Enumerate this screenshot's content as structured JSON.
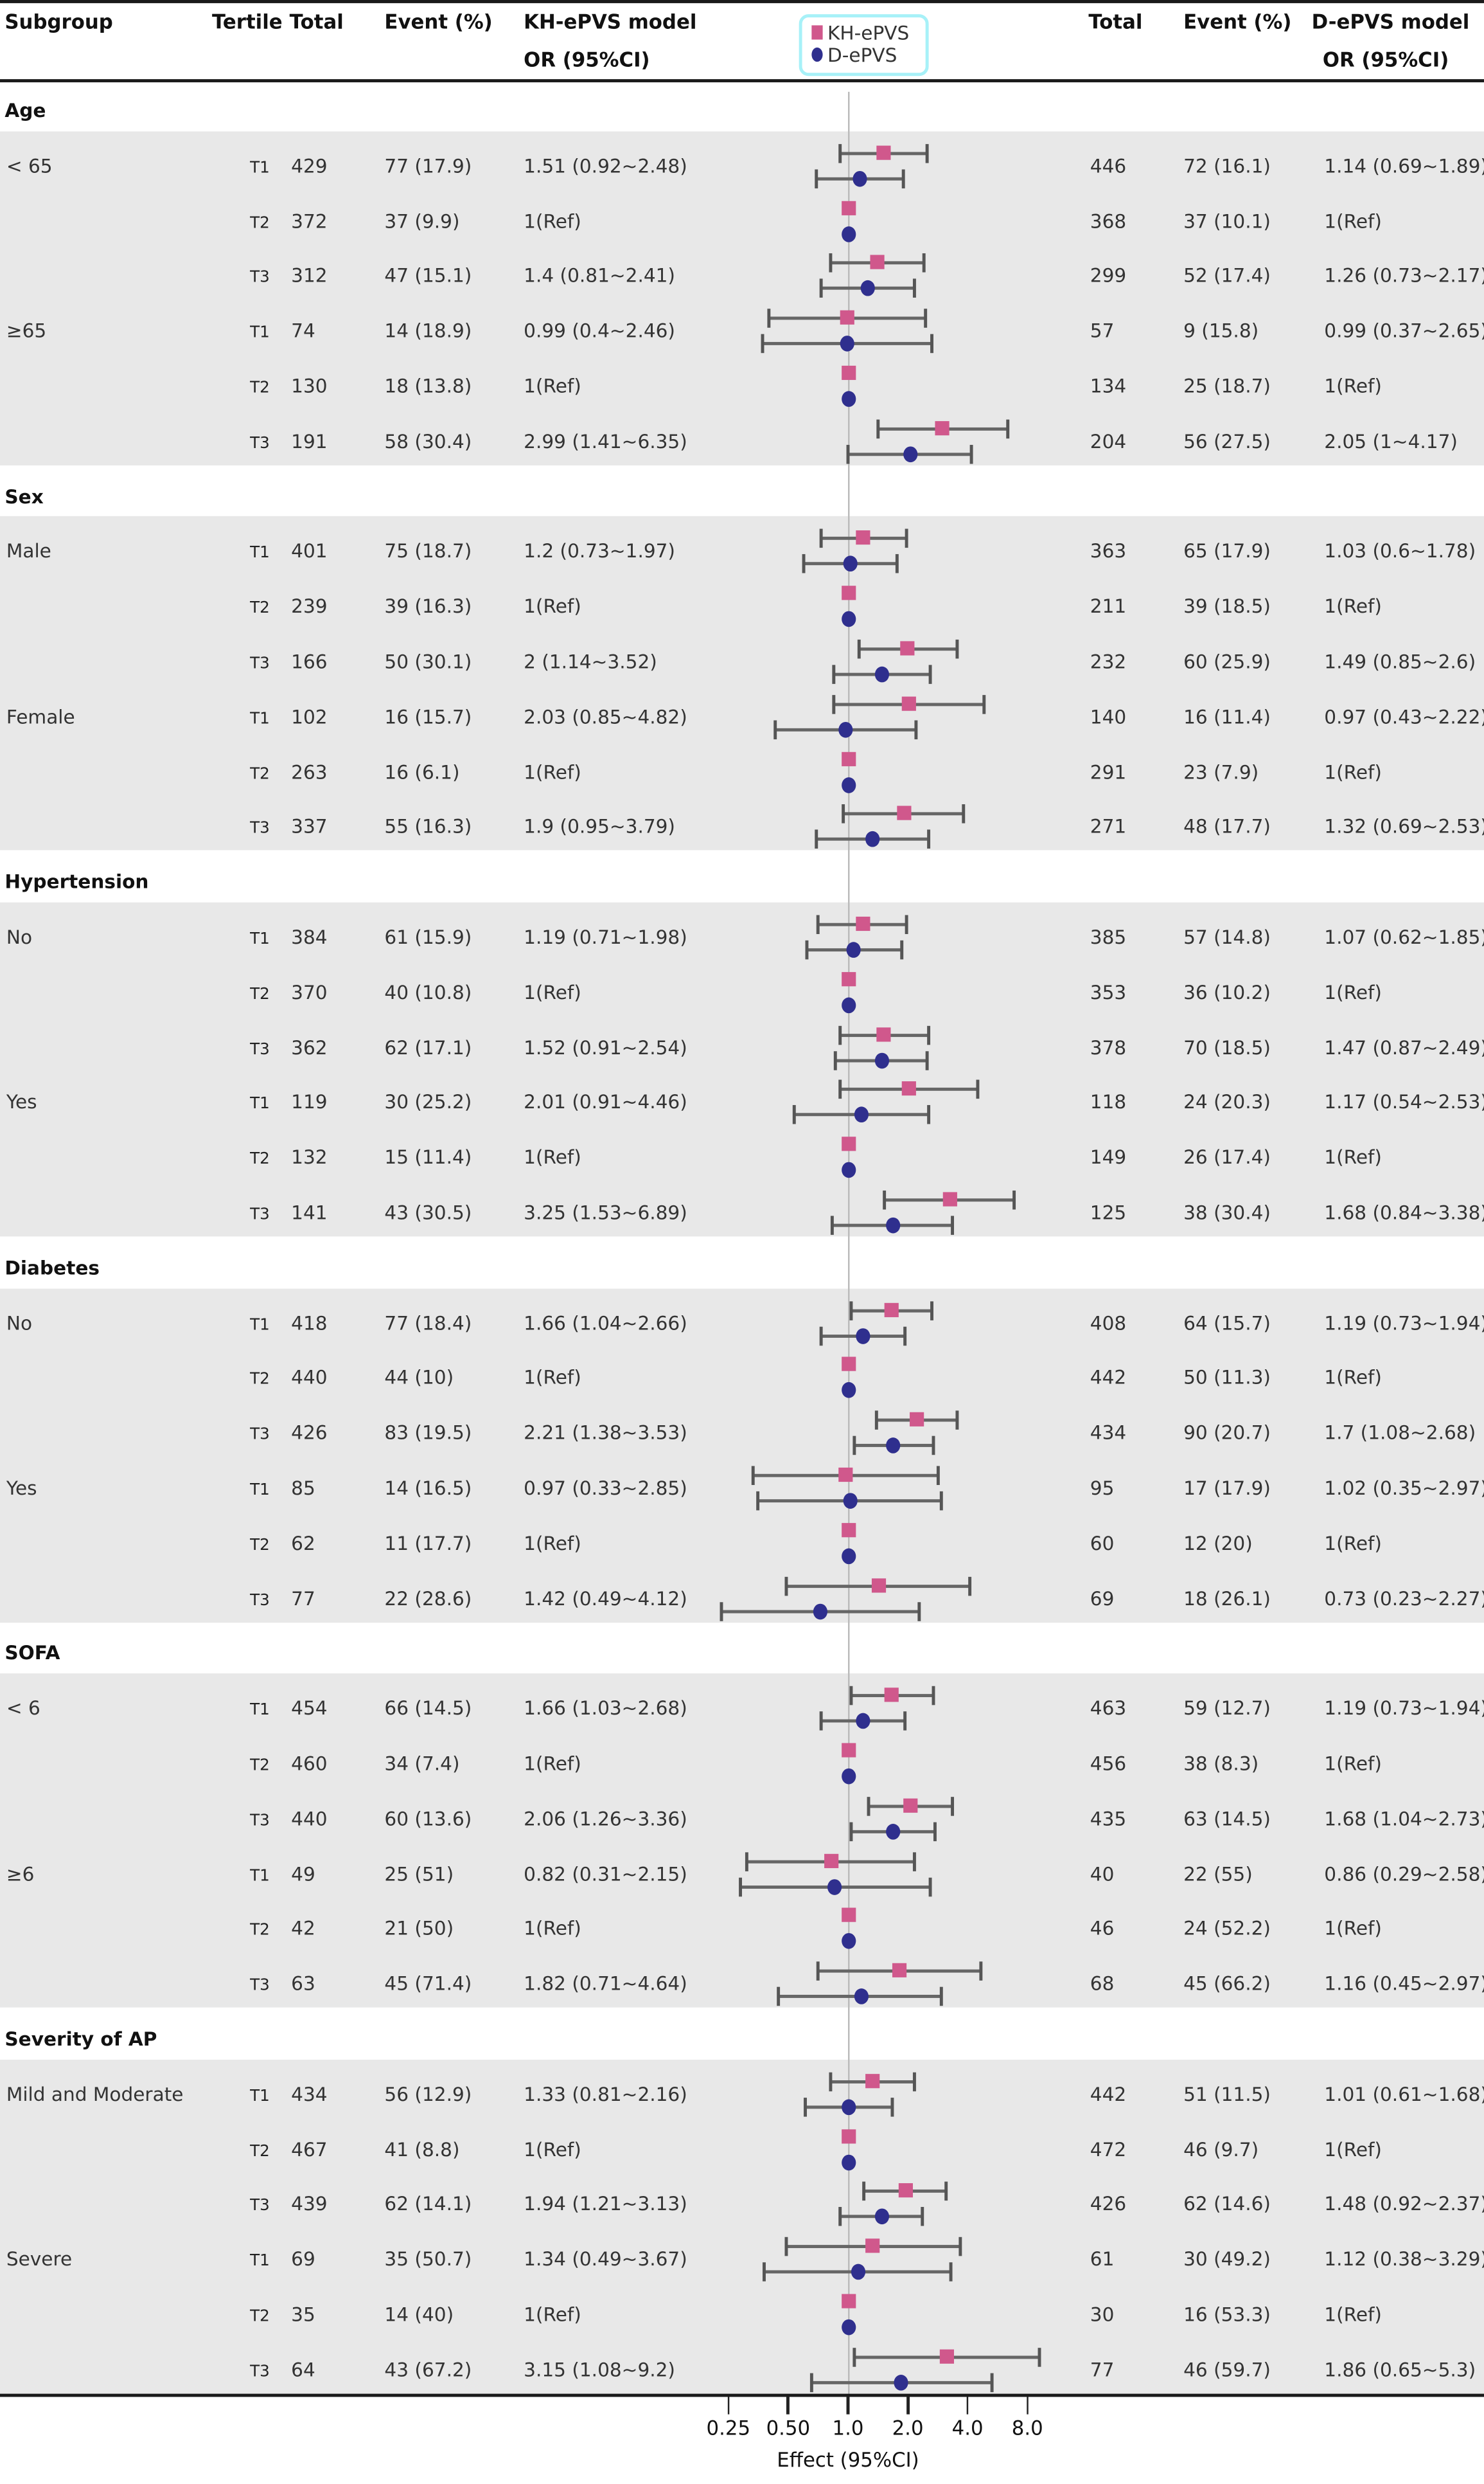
{
  "header": {
    "subgroup": "Subgroup",
    "tertile": "Tertile",
    "total": "Total",
    "event": "Event (%)",
    "kh_model": "KH-ePVS model",
    "or": "OR (95%CI)",
    "total_r": "Total",
    "event_r": "Event (%)",
    "d_model": "D-ePVS model",
    "or_r": "OR (95%CI)"
  },
  "colors": {
    "kh": "#d0588c",
    "d": "#2f2f8e",
    "band": "#e8e8e8",
    "legend_border": "#a7f1f8"
  },
  "chart_data": {
    "type": "forest",
    "xlabel": "Effect (95%CI)",
    "x_scale": "log2",
    "x_ticks": [
      0.25,
      0.5,
      1,
      2,
      4,
      8
    ],
    "x_tick_labels": [
      "0.25",
      "0.50",
      "1.0",
      "2.0",
      "4.0",
      "8.0"
    ],
    "reference_line": 1,
    "legend": {
      "position": "top-center",
      "kh": "KH-ePVS",
      "d": "D-ePVS"
    },
    "sections": [
      {
        "name": "Age",
        "groups": [
          {
            "name": "< 65",
            "rows": [
              {
                "t": "T1",
                "kh": [
                  "429",
                  "77 (17.9)",
                  "1.51 (0.92~2.48)"
                ],
                "d": [
                  "446",
                  "72 (16.1)",
                  "1.14 (0.69~1.89)"
                ]
              },
              {
                "t": "T2",
                "kh": [
                  "372",
                  "37 (9.9)",
                  "1(Ref)"
                ],
                "d": [
                  "368",
                  "37 (10.1)",
                  "1(Ref)"
                ]
              },
              {
                "t": "T3",
                "kh": [
                  "312",
                  "47 (15.1)",
                  "1.4 (0.81~2.41)"
                ],
                "d": [
                  "299",
                  "52 (17.4)",
                  "1.26 (0.73~2.17)"
                ]
              }
            ]
          },
          {
            "name": "≥65",
            "rows": [
              {
                "t": "T1",
                "kh": [
                  "74",
                  "14 (18.9)",
                  "0.99 (0.4~2.46)"
                ],
                "d": [
                  "57",
                  "9 (15.8)",
                  "0.99 (0.37~2.65)"
                ]
              },
              {
                "t": "T2",
                "kh": [
                  "130",
                  "18 (13.8)",
                  "1(Ref)"
                ],
                "d": [
                  "134",
                  "25 (18.7)",
                  "1(Ref)"
                ]
              },
              {
                "t": "T3",
                "kh": [
                  "191",
                  "58 (30.4)",
                  "2.99 (1.41~6.35)"
                ],
                "d": [
                  "204",
                  "56 (27.5)",
                  "2.05 (1~4.17)"
                ]
              }
            ]
          }
        ]
      },
      {
        "name": "Sex",
        "groups": [
          {
            "name": "Male",
            "rows": [
              {
                "t": "T1",
                "kh": [
                  "401",
                  "75 (18.7)",
                  "1.2 (0.73~1.97)"
                ],
                "d": [
                  "363",
                  "65 (17.9)",
                  "1.03 (0.6~1.78)"
                ]
              },
              {
                "t": "T2",
                "kh": [
                  "239",
                  "39 (16.3)",
                  "1(Ref)"
                ],
                "d": [
                  "211",
                  "39 (18.5)",
                  "1(Ref)"
                ]
              },
              {
                "t": "T3",
                "kh": [
                  "166",
                  "50 (30.1)",
                  "2 (1.14~3.52)"
                ],
                "d": [
                  "232",
                  "60 (25.9)",
                  "1.49 (0.85~2.6)"
                ]
              }
            ]
          },
          {
            "name": "Female",
            "rows": [
              {
                "t": "T1",
                "kh": [
                  "102",
                  "16 (15.7)",
                  "2.03 (0.85~4.82)"
                ],
                "d": [
                  "140",
                  "16 (11.4)",
                  "0.97 (0.43~2.22)"
                ]
              },
              {
                "t": "T2",
                "kh": [
                  "263",
                  "16 (6.1)",
                  "1(Ref)"
                ],
                "d": [
                  "291",
                  "23 (7.9)",
                  "1(Ref)"
                ]
              },
              {
                "t": "T3",
                "kh": [
                  "337",
                  "55 (16.3)",
                  "1.9 (0.95~3.79)"
                ],
                "d": [
                  "271",
                  "48 (17.7)",
                  "1.32 (0.69~2.53)"
                ]
              }
            ]
          }
        ]
      },
      {
        "name": "Hypertension",
        "groups": [
          {
            "name": "No",
            "rows": [
              {
                "t": "T1",
                "kh": [
                  "384",
                  "61 (15.9)",
                  "1.19 (0.71~1.98)"
                ],
                "d": [
                  "385",
                  "57 (14.8)",
                  "1.07 (0.62~1.85)"
                ]
              },
              {
                "t": "T2",
                "kh": [
                  "370",
                  "40 (10.8)",
                  "1(Ref)"
                ],
                "d": [
                  "353",
                  "36 (10.2)",
                  "1(Ref)"
                ]
              },
              {
                "t": "T3",
                "kh": [
                  "362",
                  "62 (17.1)",
                  "1.52 (0.91~2.54)"
                ],
                "d": [
                  "378",
                  "70 (18.5)",
                  "1.47 (0.87~2.49)"
                ]
              }
            ]
          },
          {
            "name": "Yes",
            "rows": [
              {
                "t": "T1",
                "kh": [
                  "119",
                  "30 (25.2)",
                  "2.01 (0.91~4.46)"
                ],
                "d": [
                  "118",
                  "24 (20.3)",
                  "1.17 (0.54~2.53)"
                ]
              },
              {
                "t": "T2",
                "kh": [
                  "132",
                  "15 (11.4)",
                  "1(Ref)"
                ],
                "d": [
                  "149",
                  "26 (17.4)",
                  "1(Ref)"
                ]
              },
              {
                "t": "T3",
                "kh": [
                  "141",
                  "43 (30.5)",
                  "3.25 (1.53~6.89)"
                ],
                "d": [
                  "125",
                  "38 (30.4)",
                  "1.68 (0.84~3.38)"
                ]
              }
            ]
          }
        ]
      },
      {
        "name": "Diabetes",
        "groups": [
          {
            "name": "No",
            "rows": [
              {
                "t": "T1",
                "kh": [
                  "418",
                  "77 (18.4)",
                  "1.66 (1.04~2.66)"
                ],
                "d": [
                  "408",
                  "64 (15.7)",
                  "1.19 (0.73~1.94)"
                ]
              },
              {
                "t": "T2",
                "kh": [
                  "440",
                  "44 (10)",
                  "1(Ref)"
                ],
                "d": [
                  "442",
                  "50 (11.3)",
                  "1(Ref)"
                ]
              },
              {
                "t": "T3",
                "kh": [
                  "426",
                  "83 (19.5)",
                  "2.21 (1.38~3.53)"
                ],
                "d": [
                  "434",
                  "90 (20.7)",
                  "1.7 (1.08~2.68)"
                ]
              }
            ]
          },
          {
            "name": "Yes",
            "rows": [
              {
                "t": "T1",
                "kh": [
                  "85",
                  "14 (16.5)",
                  "0.97 (0.33~2.85)"
                ],
                "d": [
                  "95",
                  "17 (17.9)",
                  "1.02 (0.35~2.97)"
                ]
              },
              {
                "t": "T2",
                "kh": [
                  "62",
                  "11 (17.7)",
                  "1(Ref)"
                ],
                "d": [
                  "60",
                  "12 (20)",
                  "1(Ref)"
                ]
              },
              {
                "t": "T3",
                "kh": [
                  "77",
                  "22 (28.6)",
                  "1.42 (0.49~4.12)"
                ],
                "d": [
                  "69",
                  "18 (26.1)",
                  "0.73 (0.23~2.27)"
                ]
              }
            ]
          }
        ]
      },
      {
        "name": "SOFA",
        "groups": [
          {
            "name": "< 6",
            "rows": [
              {
                "t": "T1",
                "kh": [
                  "454",
                  "66 (14.5)",
                  "1.66 (1.03~2.68)"
                ],
                "d": [
                  "463",
                  "59 (12.7)",
                  "1.19 (0.73~1.94)"
                ]
              },
              {
                "t": "T2",
                "kh": [
                  "460",
                  "34 (7.4)",
                  "1(Ref)"
                ],
                "d": [
                  "456",
                  "38 (8.3)",
                  "1(Ref)"
                ]
              },
              {
                "t": "T3",
                "kh": [
                  "440",
                  "60 (13.6)",
                  "2.06 (1.26~3.36)"
                ],
                "d": [
                  "435",
                  "63 (14.5)",
                  "1.68 (1.04~2.73)"
                ]
              }
            ]
          },
          {
            "name": "≥6",
            "rows": [
              {
                "t": "T1",
                "kh": [
                  "49",
                  "25 (51)",
                  "0.82 (0.31~2.15)"
                ],
                "d": [
                  "40",
                  "22 (55)",
                  "0.86 (0.29~2.58)"
                ]
              },
              {
                "t": "T2",
                "kh": [
                  "42",
                  "21 (50)",
                  "1(Ref)"
                ],
                "d": [
                  "46",
                  "24 (52.2)",
                  "1(Ref)"
                ]
              },
              {
                "t": "T3",
                "kh": [
                  "63",
                  "45 (71.4)",
                  "1.82 (0.71~4.64)"
                ],
                "d": [
                  "68",
                  "45 (66.2)",
                  "1.16 (0.45~2.97)"
                ]
              }
            ]
          }
        ]
      },
      {
        "name": "Severity of AP",
        "groups": [
          {
            "name": "Mild and Moderate",
            "rows": [
              {
                "t": "T1",
                "kh": [
                  "434",
                  "56 (12.9)",
                  "1.33 (0.81~2.16)"
                ],
                "d": [
                  "442",
                  "51 (11.5)",
                  "1.01 (0.61~1.68)"
                ]
              },
              {
                "t": "T2",
                "kh": [
                  "467",
                  "41 (8.8)",
                  "1(Ref)"
                ],
                "d": [
                  "472",
                  "46 (9.7)",
                  "1(Ref)"
                ]
              },
              {
                "t": "T3",
                "kh": [
                  "439",
                  "62 (14.1)",
                  "1.94 (1.21~3.13)"
                ],
                "d": [
                  "426",
                  "62 (14.6)",
                  "1.48 (0.92~2.37)"
                ]
              }
            ]
          },
          {
            "name": "Severe",
            "rows": [
              {
                "t": "T1",
                "kh": [
                  "69",
                  "35 (50.7)",
                  "1.34 (0.49~3.67)"
                ],
                "d": [
                  "61",
                  "30 (49.2)",
                  "1.12 (0.38~3.29)"
                ]
              },
              {
                "t": "T2",
                "kh": [
                  "35",
                  "14 (40)",
                  "1(Ref)"
                ],
                "d": [
                  "30",
                  "16 (53.3)",
                  "1(Ref)"
                ]
              },
              {
                "t": "T3",
                "kh": [
                  "64",
                  "43 (67.2)",
                  "3.15 (1.08~9.2)"
                ],
                "d": [
                  "77",
                  "46 (59.7)",
                  "1.86 (0.65~5.3)"
                ]
              }
            ]
          }
        ]
      }
    ]
  }
}
